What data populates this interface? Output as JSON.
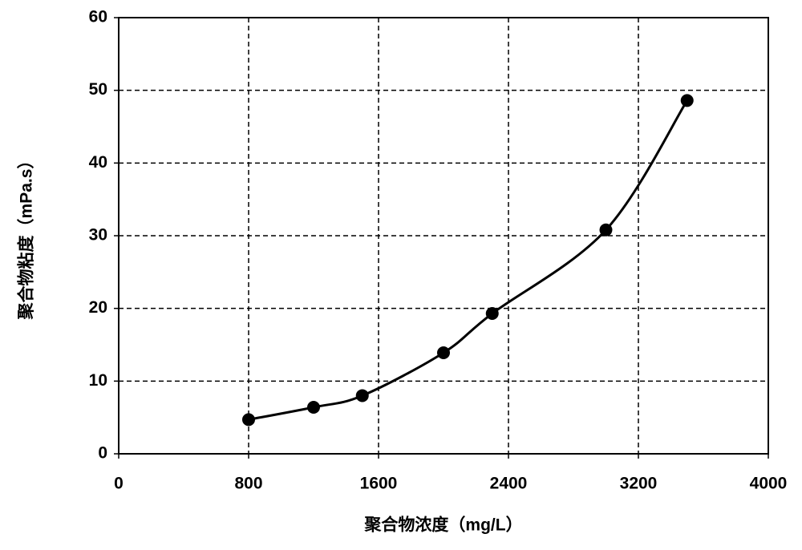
{
  "chart_data": {
    "type": "line",
    "x_label": "聚合物浓度（mg/L）",
    "y_label": "聚合物粘度（mPa.s）",
    "series": [
      {
        "color": "#000000",
        "x": [
          800,
          1200,
          1500,
          2000,
          2300,
          3000,
          3500
        ],
        "values": [
          4.7,
          6.4,
          8.0,
          13.9,
          19.3,
          30.8,
          48.6
        ]
      }
    ],
    "xlim": [
      0,
      4000
    ],
    "xticks": [
      0,
      800,
      1600,
      2400,
      3200,
      4000
    ],
    "ylim": [
      0,
      60
    ],
    "yticks": [
      0,
      10,
      20,
      30,
      40,
      50,
      60
    ],
    "grid": true,
    "smooth": true
  }
}
